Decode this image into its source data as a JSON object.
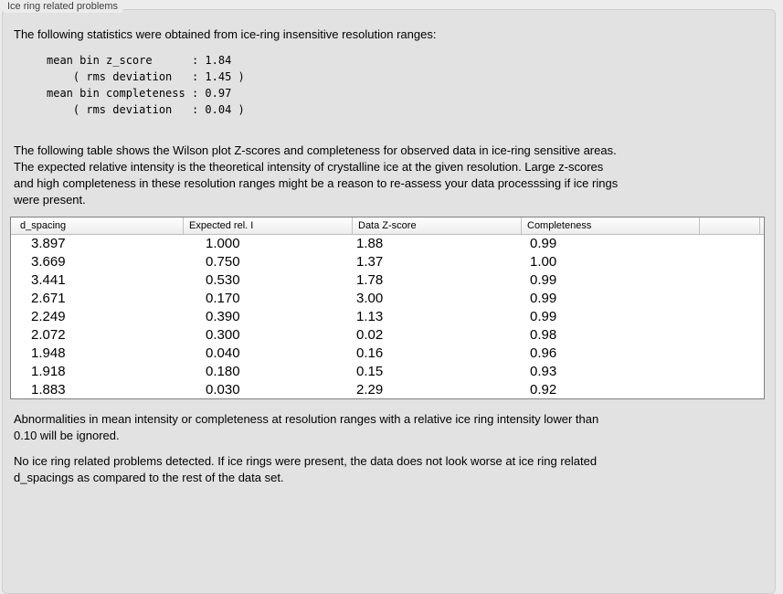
{
  "window": {
    "title": "Ice ring related problems"
  },
  "colors": {
    "outer_bg": "#ececec",
    "panel_bg": "#e2e2e2",
    "panel_border": "#cfcfcf",
    "table_border": "#7f7f7f",
    "header_separator": "#c3c3c3",
    "header_bottom": "#bdbdbd",
    "text": "#000000",
    "title": "#3e3e3e"
  },
  "panel": {
    "intro": "The following statistics were obtained from ice-ring insensitive resolution ranges:",
    "stats_block": [
      "mean bin z_score      : 1.84",
      "    ( rms deviation   : 1.45 )",
      "mean bin completeness : 0.97",
      "    ( rms deviation   : 0.04 )"
    ],
    "description": [
      "The following table shows the Wilson plot Z-scores and completeness for observed data in ice-ring sensitive areas.",
      "The expected relative intensity is the theoretical intensity of crystalline ice at the given resolution. Large z-scores",
      "and high completeness in these resolution ranges might be a reason to re-assess your data processsing if ice rings",
      "were present."
    ],
    "table": {
      "columns": [
        "d_spacing",
        "Expected rel. I",
        "Data Z-score",
        "Completeness"
      ],
      "rows": [
        [
          "3.897",
          "1.000",
          "1.88",
          "0.99"
        ],
        [
          "3.669",
          "0.750",
          "1.37",
          "1.00"
        ],
        [
          "3.441",
          "0.530",
          "1.78",
          "0.99"
        ],
        [
          "2.671",
          "0.170",
          "3.00",
          "0.99"
        ],
        [
          "2.249",
          "0.390",
          "1.13",
          "0.99"
        ],
        [
          "2.072",
          "0.300",
          "0.02",
          "0.98"
        ],
        [
          "1.948",
          "0.040",
          "0.16",
          "0.96"
        ],
        [
          "1.918",
          "0.180",
          "0.15",
          "0.93"
        ],
        [
          "1.883",
          "0.030",
          "2.29",
          "0.92"
        ]
      ]
    },
    "ignore_note": [
      "Abnormalities in mean intensity or completeness at resolution ranges with a relative ice ring intensity lower than",
      "0.10 will be ignored."
    ],
    "conclusion": [
      "No ice ring related problems detected. If ice rings were present, the data does not look worse at ice ring related",
      "d_spacings as compared to the rest of the data set."
    ]
  }
}
